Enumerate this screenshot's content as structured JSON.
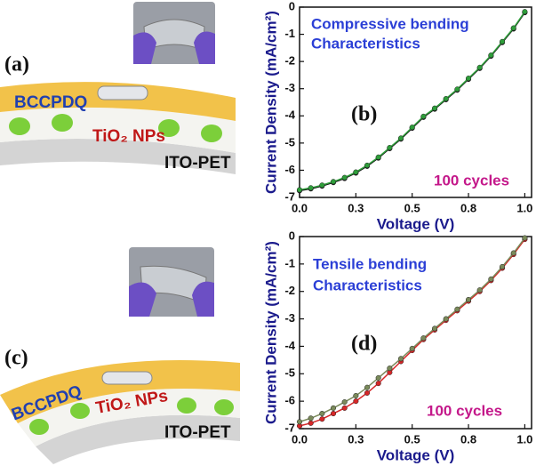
{
  "diagrams": [
    {
      "label": "(a)",
      "top_layer": "BCCPDQ",
      "middle_layer": "TiO₂ NPs",
      "substrate": "ITO-PET"
    },
    {
      "label": "(c)",
      "top_layer": "BCCPDQ",
      "middle_layer": "TiO₂ NPs",
      "substrate": "ITO-PET"
    }
  ],
  "chart_data": [
    {
      "type": "line",
      "panel_label": "(b)",
      "annotation": [
        "Compressive bending",
        "Characteristics"
      ],
      "cycles_label": "100 cycles",
      "x_label": "Voltage (V)",
      "y_label": "Current Density (mA/cm²)",
      "x": [
        0,
        0.05,
        0.1,
        0.15,
        0.2,
        0.25,
        0.3,
        0.35,
        0.4,
        0.45,
        0.5,
        0.55,
        0.6,
        0.65,
        0.7,
        0.75,
        0.8,
        0.85,
        0.9,
        0.95,
        1.0
      ],
      "series": [
        {
          "color": "#111111",
          "values": [
            -6.75,
            -6.68,
            -6.58,
            -6.45,
            -6.3,
            -6.1,
            -5.85,
            -5.55,
            -5.2,
            -4.85,
            -4.45,
            -4.05,
            -3.75,
            -3.4,
            -3.05,
            -2.65,
            -2.25,
            -1.8,
            -1.3,
            -0.8,
            -0.2
          ]
        },
        {
          "color": "#2e9e3a",
          "values": [
            -6.72,
            -6.65,
            -6.55,
            -6.42,
            -6.27,
            -6.07,
            -5.82,
            -5.52,
            -5.17,
            -4.82,
            -4.42,
            -4.02,
            -3.72,
            -3.37,
            -3.02,
            -2.62,
            -2.22,
            -1.77,
            -1.27,
            -0.77,
            -0.17
          ]
        }
      ],
      "xlim": [
        0,
        1.03
      ],
      "ylim": [
        -7,
        0
      ],
      "xticks": [
        {
          "value": 0,
          "label": "0.0"
        },
        {
          "value": 0.25,
          "label": "0.3"
        },
        {
          "value": 0.5,
          "label": "0.5"
        },
        {
          "value": 0.75,
          "label": "0.8"
        },
        {
          "value": 1.0,
          "label": "1.0"
        }
      ],
      "yticks": [
        -7,
        -6,
        -5,
        -4,
        -3,
        -2,
        -1,
        0
      ]
    },
    {
      "type": "line",
      "panel_label": "(d)",
      "annotation": [
        "Tensile bending",
        "Characteristics"
      ],
      "cycles_label": "100 cycles",
      "x_label": "Voltage (V)",
      "y_label": "Current Density (mA/cm²)",
      "x": [
        0,
        0.05,
        0.1,
        0.15,
        0.2,
        0.25,
        0.3,
        0.35,
        0.4,
        0.45,
        0.5,
        0.55,
        0.6,
        0.65,
        0.7,
        0.75,
        0.8,
        0.85,
        0.9,
        0.95,
        1.0
      ],
      "series": [
        {
          "color": "#d62728",
          "values": [
            -6.9,
            -6.8,
            -6.65,
            -6.45,
            -6.25,
            -6.0,
            -5.7,
            -5.35,
            -4.95,
            -4.55,
            -4.15,
            -3.75,
            -3.4,
            -3.05,
            -2.7,
            -2.35,
            -2.0,
            -1.6,
            -1.15,
            -0.65,
            -0.1
          ]
        },
        {
          "color": "#7a8a5a",
          "values": [
            -6.75,
            -6.62,
            -6.45,
            -6.25,
            -6.03,
            -5.8,
            -5.5,
            -5.15,
            -4.8,
            -4.45,
            -4.08,
            -3.7,
            -3.35,
            -3.0,
            -2.65,
            -2.3,
            -1.95,
            -1.55,
            -1.1,
            -0.6,
            -0.05
          ]
        }
      ],
      "xlim": [
        0,
        1.03
      ],
      "ylim": [
        -7,
        0
      ],
      "xticks": [
        {
          "value": 0,
          "label": "0.0"
        },
        {
          "value": 0.25,
          "label": "0.3"
        },
        {
          "value": 0.5,
          "label": "0.5"
        },
        {
          "value": 0.75,
          "label": "0.8"
        },
        {
          "value": 1.0,
          "label": "1.0"
        }
      ],
      "yticks": [
        -7,
        -6,
        -5,
        -4,
        -3,
        -2,
        -1,
        0
      ]
    }
  ]
}
